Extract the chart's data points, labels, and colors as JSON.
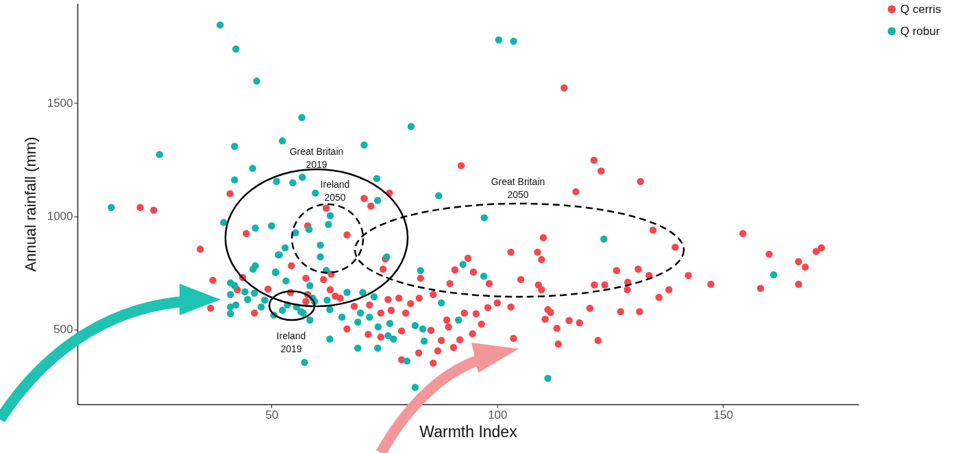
{
  "chart_data": {
    "type": "scatter",
    "xlabel": "Warmth Index",
    "ylabel": "Annual rainfall (mm)",
    "xlim": [
      7,
      180
    ],
    "ylim": [
      170,
      1940
    ],
    "xticks": [
      50,
      100,
      150
    ],
    "yticks": [
      500,
      1000,
      1500
    ],
    "grid": false,
    "legend": "right",
    "marker": "circle",
    "series": [
      {
        "name": "Q cerris",
        "color": "#f5474f",
        "x": [
          40.8,
          20.9,
          23.9,
          62.1,
          114.8,
          92,
          121.4,
          123,
          131.7,
          117.4,
          76.1,
          70.5,
          72,
          134.5,
          139.4,
          154.4,
          160.2,
          166.7,
          168.2,
          166.7,
          158.3,
          147.3,
          142.3,
          170.6,
          171.8,
          110.2,
          108.9,
          109.8,
          103,
          105.2,
          109.1,
          109.8,
          126.4,
          131.2,
          133.6,
          128.9,
          123.8,
          121.5,
          128.8,
          138,
          135.8,
          120.5,
          127.3,
          131.5,
          111.2,
          111.8,
          110.6,
          115.9,
          118.2,
          113.2,
          113.5,
          122.3,
          103.6,
          103,
          100,
          98.2,
          94.7,
          90.6,
          89.5,
          93.5,
          94.5,
          91.7,
          90.3,
          95.3,
          97.9,
          96.5,
          92.7,
          89.2,
          66.7,
          58,
          54.4,
          57.6,
          61.5,
          63.2,
          74.7,
          75.2,
          83,
          63,
          64.1,
          65.2,
          68.3,
          71.7,
          75.8,
          78.2,
          80.8,
          82.7,
          85.8,
          76.5,
          79.7,
          74.2,
          78.8,
          66.7,
          71.4,
          74.2,
          82.6,
          78.8,
          85.8,
          86.8,
          87.6,
          85.3,
          88.8,
          54.2,
          58,
          57.6,
          34.2,
          44.4,
          37,
          42.4,
          36.5,
          46.2,
          49.2,
          43.6
        ],
        "values": [
          1100,
          1039,
          1027,
          1036,
          1567,
          1224,
          1248,
          1200,
          1154,
          1109,
          1103,
          1079,
          1045,
          939,
          864,
          924,
          833,
          800,
          776,
          700,
          682,
          700,
          739,
          845,
          861,
          906,
          842,
          809,
          842,
          721,
          697,
          676,
          761,
          767,
          739,
          709,
          697,
          697,
          676,
          676,
          642,
          594,
          579,
          579,
          588,
          576,
          546,
          540,
          530,
          506,
          436,
          452,
          461,
          600,
          618,
          703,
          754,
          764,
          703,
          815,
          482,
          455,
          421,
          570,
          597,
          524,
          573,
          512,
          918,
          958,
          782,
          727,
          721,
          745,
          767,
          812,
          727,
          676,
          648,
          639,
          603,
          609,
          633,
          639,
          615,
          639,
          655,
          585,
          573,
          573,
          494,
          503,
          479,
          467,
          397,
          367,
          352,
          406,
          452,
          497,
          542,
          664,
          655,
          624,
          855,
          924,
          718,
          676,
          594,
          573,
          679,
          730
        ]
      },
      {
        "name": "Q robur",
        "color": "#14b3ad",
        "x": [
          38.6,
          42.1,
          46.7,
          56.7,
          52.4,
          41.8,
          45.8,
          41.8,
          25.2,
          14.5,
          70.5,
          80.9,
          100.3,
          103.6,
          87,
          73.3,
          73.5,
          97.1,
          51.1,
          54.7,
          56.8,
          59.7,
          63,
          123.6,
          161.2,
          111.2,
          97,
          92.4,
          91.4,
          58.3,
          62.6,
          55.3,
          53,
          51.7,
          60.8,
          60.8,
          62.1,
          50.9,
          53.2,
          58.5,
          66.7,
          70.2,
          72.7,
          75.5,
          83,
          87.6,
          62.3,
          62.9,
          65.6,
          69.7,
          69.1,
          71.7,
          73.6,
          76.2,
          75.8,
          77,
          81.8,
          83.5,
          83.8,
          62.9,
          69.1,
          73.5,
          80,
          57.3,
          81.8,
          55.5,
          52.4,
          57,
          58.5,
          59.1,
          39.4,
          46.4,
          50,
          51.5,
          46.4,
          45.9,
          50.9,
          40.9,
          41.8,
          44.1,
          46.2,
          40.9,
          44.7,
          48.5,
          40.9,
          42.1,
          40.9,
          47.7,
          53.5,
          56.5,
          50.5,
          59.5
        ],
        "values": [
          1845,
          1739,
          1597,
          1436,
          1333,
          1309,
          1212,
          1161,
          1273,
          1039,
          1315,
          1397,
          1779,
          1773,
          1091,
          1167,
          1070,
          994,
          1154,
          1148,
          1173,
          1103,
          1003,
          900,
          742,
          285,
          736,
          788,
          542,
          942,
          964,
          927,
          861,
          830,
          873,
          821,
          761,
          752,
          715,
          694,
          664,
          664,
          645,
          821,
          761,
          618,
          630,
          588,
          555,
          573,
          533,
          555,
          512,
          527,
          473,
          458,
          518,
          503,
          449,
          458,
          418,
          418,
          361,
          355,
          245,
          600,
          585,
          573,
          542,
          639,
          973,
          948,
          958,
          830,
          782,
          767,
          755,
          706,
          694,
          667,
          661,
          655,
          633,
          630,
          600,
          609,
          570,
          600,
          609,
          579,
          564,
          624
        ]
      }
    ],
    "annotations": [
      "Great Britain 2019",
      "Ireland 2050",
      "Great Britain 2050",
      "Ireland 2019"
    ]
  }
}
